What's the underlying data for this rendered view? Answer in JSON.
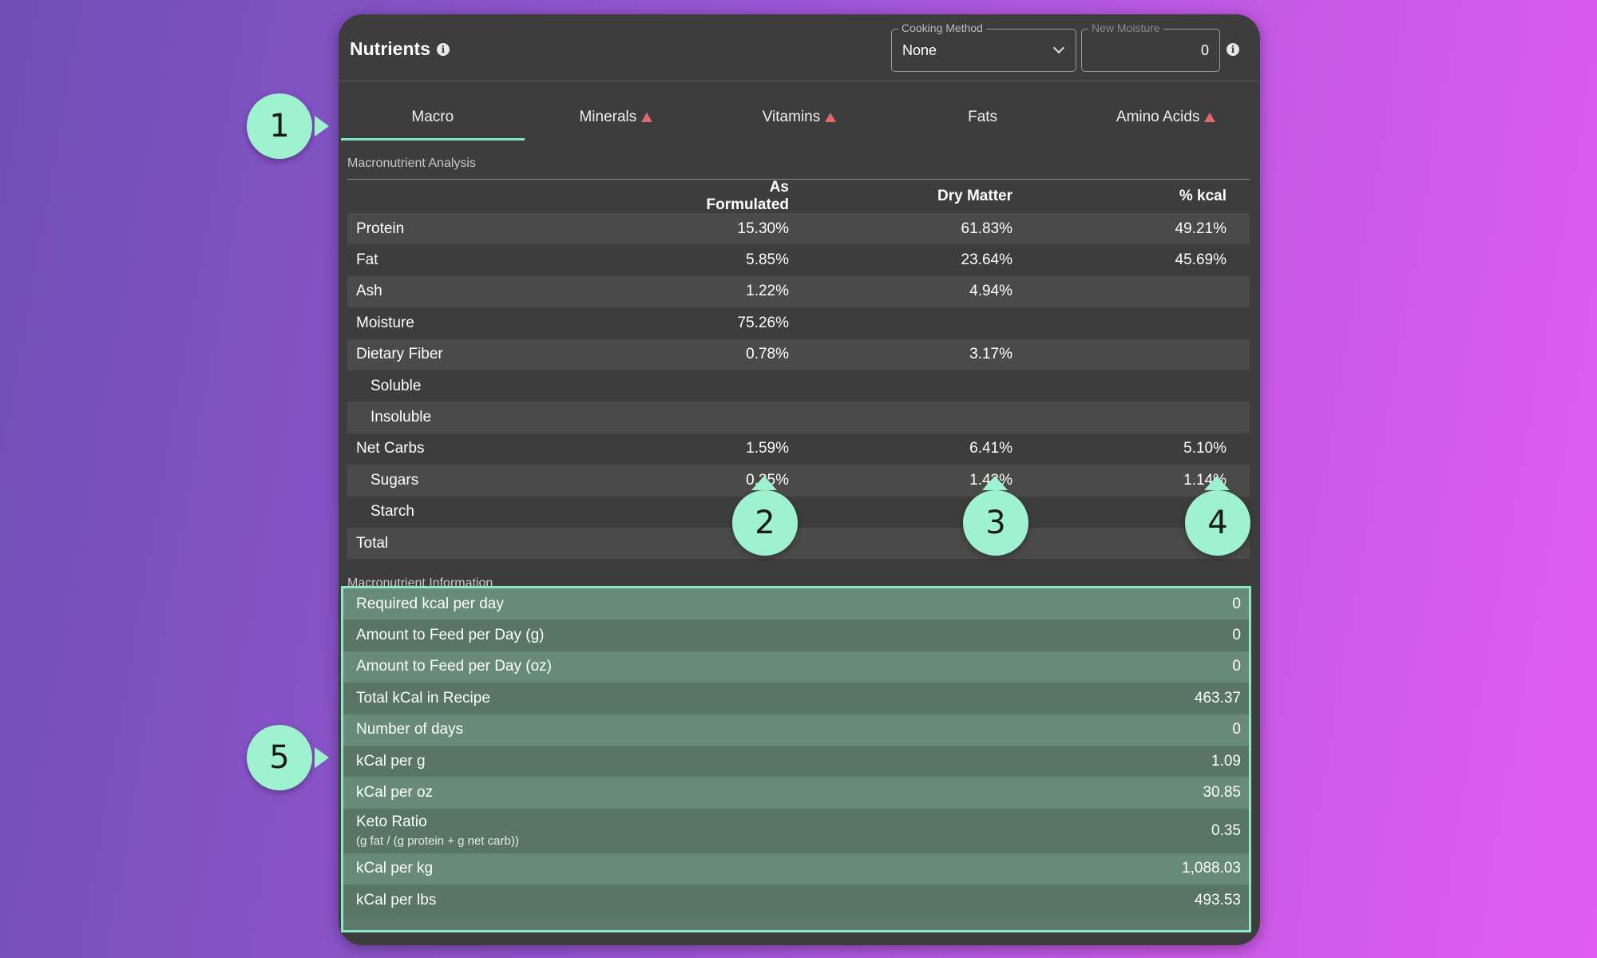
{
  "header": {
    "title": "Nutrients",
    "cooking_method": {
      "legend": "Cooking Method",
      "value": "None"
    },
    "new_moisture": {
      "legend": "New Moisture",
      "value": "0"
    }
  },
  "tabs": [
    {
      "label": "Macro",
      "active": true,
      "warning": false
    },
    {
      "label": "Minerals",
      "active": false,
      "warning": true
    },
    {
      "label": "Vitamins",
      "active": false,
      "warning": true
    },
    {
      "label": "Fats",
      "active": false,
      "warning": false
    },
    {
      "label": "Amino Acids",
      "active": false,
      "warning": true
    }
  ],
  "analysis": {
    "label": "Macronutrient Analysis",
    "columns": [
      "As Formulated",
      "Dry Matter",
      "% kcal"
    ],
    "rows": [
      {
        "name": "Protein",
        "af": "15.30%",
        "dm": "61.83%",
        "kcal": "49.21%"
      },
      {
        "name": "Fat",
        "af": "5.85%",
        "dm": "23.64%",
        "kcal": "45.69%"
      },
      {
        "name": "Ash",
        "af": "1.22%",
        "dm": "4.94%",
        "kcal": ""
      },
      {
        "name": "Moisture",
        "af": "75.26%",
        "dm": "",
        "kcal": ""
      },
      {
        "name": "Dietary Fiber",
        "af": "0.78%",
        "dm": "3.17%",
        "kcal": ""
      },
      {
        "name": "Soluble",
        "af": "",
        "dm": "",
        "kcal": ""
      },
      {
        "name": "Insoluble",
        "af": "",
        "dm": "",
        "kcal": ""
      },
      {
        "name": "Net Carbs",
        "af": "1.59%",
        "dm": "6.41%",
        "kcal": "5.10%"
      },
      {
        "name": "Sugars",
        "af": "0.35%",
        "dm": "1.43%",
        "kcal": "1.14%"
      },
      {
        "name": "Starch",
        "af": "",
        "dm": "",
        "kcal": ""
      },
      {
        "name": "Total",
        "af": "",
        "dm": "",
        "kcal": ""
      }
    ]
  },
  "information": {
    "label": "Macronutrient Information",
    "rows": [
      {
        "name": "Required kcal per day",
        "value": "0"
      },
      {
        "name": "Amount to Feed per Day (g)",
        "value": "0"
      },
      {
        "name": "Amount to Feed per Day (oz)",
        "value": "0"
      },
      {
        "name": "Total kCal in Recipe",
        "value": "463.37"
      },
      {
        "name": "Number of days",
        "value": "0"
      },
      {
        "name": "kCal per g",
        "value": "1.09"
      },
      {
        "name": "kCal per oz",
        "value": "30.85"
      },
      {
        "name": "Keto Ratio",
        "sub": "(g fat / (g protein + g net carb))",
        "value": "0.35"
      },
      {
        "name": "kCal per kg",
        "value": "1,088.03"
      },
      {
        "name": "kCal per lbs",
        "value": "493.53"
      }
    ]
  },
  "callouts": [
    "1",
    "2",
    "3",
    "4",
    "5"
  ],
  "colors": {
    "accent": "#7de8c5",
    "callout": "#9ff2cf",
    "warning": "#e06a6a",
    "panel": "#3d3d3d",
    "info_bg": "#5b7a6b"
  }
}
